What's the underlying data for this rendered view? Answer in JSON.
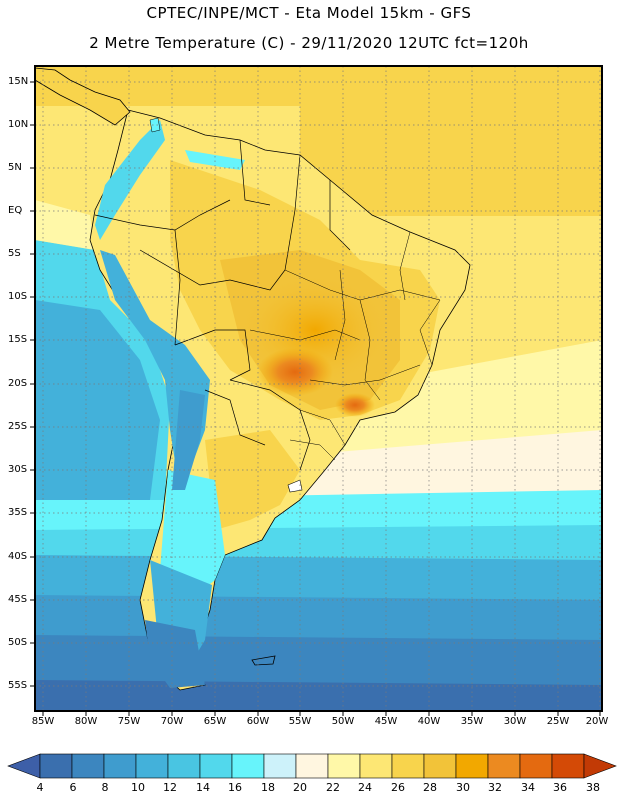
{
  "header": {
    "line1": "CPTEC/INPE/MCT -  Eta Model 15km - GFS",
    "line2": "2 Metre Temperature (C) - 29/11/2020 12UTC fct=120h"
  },
  "map": {
    "lat_labels": [
      "15N",
      "10N",
      "5N",
      "EQ",
      "5S",
      "10S",
      "15S",
      "20S",
      "25S",
      "30S",
      "35S",
      "40S",
      "45S",
      "50S",
      "55S"
    ],
    "lon_labels": [
      "85W",
      "80W",
      "75W",
      "70W",
      "65W",
      "60W",
      "55W",
      "50W",
      "45W",
      "40W",
      "35W",
      "30W",
      "25W",
      "20W"
    ]
  },
  "colorbar": {
    "ticks": [
      "4",
      "6",
      "8",
      "10",
      "12",
      "14",
      "16",
      "18",
      "20",
      "22",
      "24",
      "26",
      "28",
      "30",
      "32",
      "34",
      "36",
      "38"
    ],
    "colors": [
      "#3a6fae",
      "#3c86bf",
      "#3f9cce",
      "#43b1da",
      "#49c5e2",
      "#52d8ec",
      "#67f4fb",
      "#cdf2fa",
      "#fff6e0",
      "#fff8a8",
      "#fde774",
      "#f8d44c",
      "#f2c339",
      "#f2a800",
      "#ec8a20",
      "#e46a10",
      "#d44a06"
    ],
    "low_arrow_color": "#3d5fa8",
    "high_arrow_color": "#c23a05"
  }
}
